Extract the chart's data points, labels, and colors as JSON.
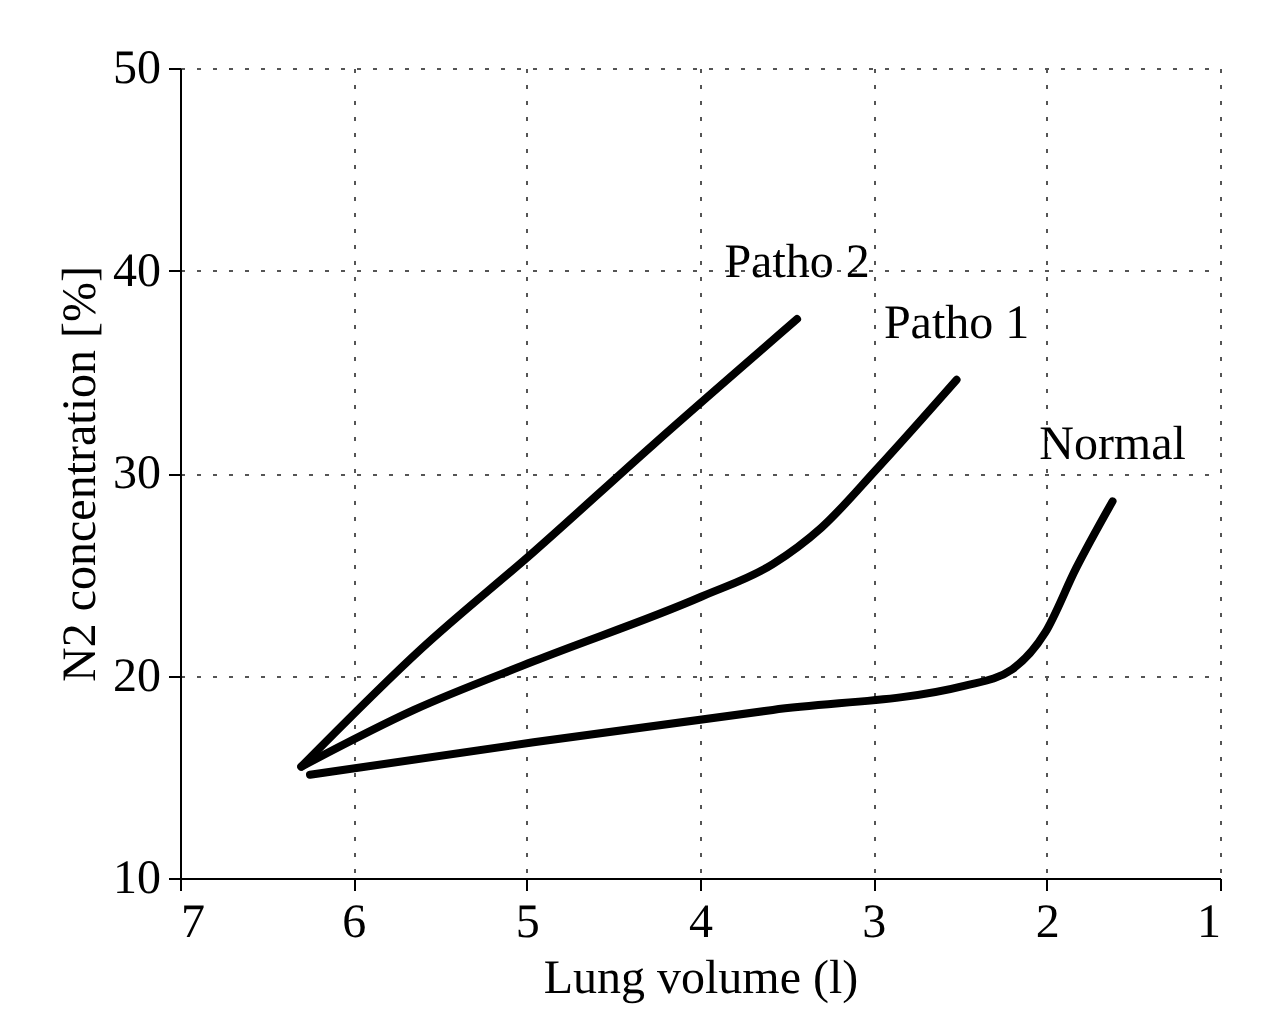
{
  "chart_data": {
    "type": "line",
    "xlabel": "Lung volume (l)",
    "ylabel": "N2 concentration [%]",
    "xlim": [
      7,
      1
    ],
    "xticks": [
      7,
      6,
      5,
      4,
      3,
      2,
      1
    ],
    "ylim": [
      10,
      50
    ],
    "yticks": [
      10,
      20,
      30,
      40,
      50
    ],
    "grid": true,
    "legend": false,
    "marker": "none",
    "line_style": "solid",
    "series": [
      {
        "name": "Patho 2",
        "color": "#000000",
        "x": [
          6.3,
          5.61,
          4.96,
          4.27,
          3.44
        ],
        "values": [
          15.5,
          21.3,
          26.1,
          31.4,
          37.6
        ]
      },
      {
        "name": "Patho 1",
        "color": "#000000",
        "x": [
          6.3,
          5.65,
          4.96,
          3.99,
          3.58,
          3.3,
          2.98,
          2.52
        ],
        "values": [
          15.5,
          18.3,
          20.7,
          23.9,
          25.5,
          27.3,
          30.2,
          34.6
        ]
      },
      {
        "name": "Normal",
        "color": "#000000",
        "x": [
          6.25,
          4.96,
          3.58,
          2.47,
          2.2,
          2.01,
          1.83,
          1.62
        ],
        "values": [
          15.1,
          16.7,
          18.3,
          19.5,
          20.3,
          22.1,
          25.3,
          28.6
        ]
      }
    ]
  }
}
